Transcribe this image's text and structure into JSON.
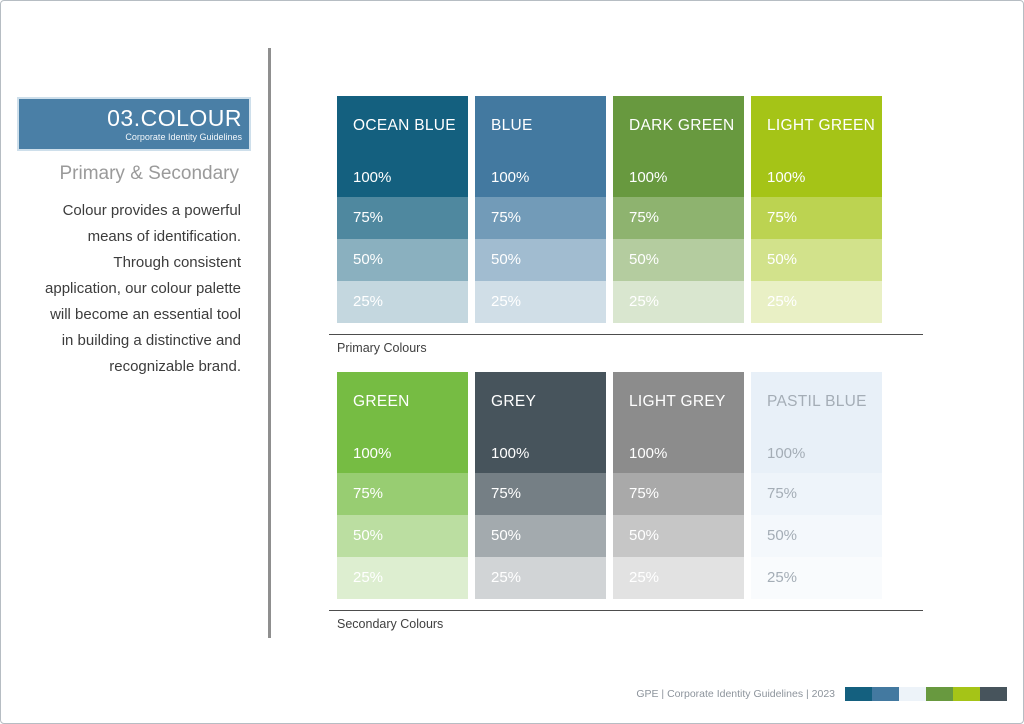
{
  "page": {
    "header": {
      "title": "03.COLOUR",
      "subtitle": "Corporate Identity Guidelines"
    },
    "section_title": "Primary & Secondary",
    "description": "Colour provides a powerful\nmeans of identification.\nThrough consistent\napplication, our colour palette\nwill become an essential tool\nin building a distinctive and\nrecognizable brand.",
    "footer": {
      "text": "GPE | Corporate Identity Guidelines | 2023"
    }
  },
  "tint_labels": [
    "100%",
    "75%",
    "50%",
    "25%"
  ],
  "palette_groups": [
    {
      "id": "primary",
      "label": "Primary Colours",
      "colours": [
        {
          "name": "OCEAN BLUE",
          "hex": "#14607F",
          "text_color": "#FFFFFF"
        },
        {
          "name": "BLUE",
          "hex": "#4379A0",
          "text_color": "#FFFFFF"
        },
        {
          "name": "DARK GREEN",
          "hex": "#68993F",
          "text_color": "#FFFFFF"
        },
        {
          "name": "LIGHT GREEN",
          "hex": "#A5C417",
          "text_color": "#FFFFFF"
        }
      ]
    },
    {
      "id": "secondary",
      "label": "Secondary Colours",
      "colours": [
        {
          "name": "GREEN",
          "hex": "#76BC43",
          "text_color": "#FFFFFF"
        },
        {
          "name": "GREY",
          "hex": "#47545C",
          "text_color": "#FFFFFF"
        },
        {
          "name": "LIGHT GREY",
          "hex": "#8C8C8C",
          "text_color": "#FFFFFF"
        },
        {
          "name": "PASTIL BLUE",
          "hex": "#E8F0F8",
          "text_color": "#A4ADB6"
        }
      ]
    }
  ],
  "footer_strip": [
    "#14607F",
    "#4379A0",
    "#EDF3F9",
    "#68993F",
    "#A5C417",
    "#47545C"
  ],
  "accent": {
    "header_bg": "#4A7FA6",
    "header_border": "#CEDFEB",
    "divider": "#8F8F8F",
    "rule": "#4D4D4D",
    "page_border": "#B6BDC3"
  }
}
